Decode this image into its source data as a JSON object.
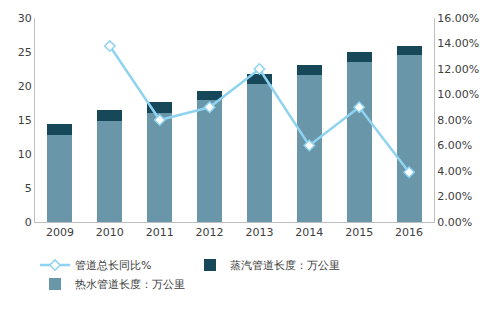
{
  "chart_data": {
    "type": "bar",
    "stacked": true,
    "grid": false,
    "legend": "bottom",
    "categories": [
      "2009",
      "2010",
      "2011",
      "2012",
      "2013",
      "2014",
      "2015",
      "2016"
    ],
    "series": [
      {
        "name": "热水管道长度：万公里",
        "type": "bar",
        "color": "#6a96aa",
        "values": [
          12.8,
          14.8,
          16.1,
          17.9,
          20.3,
          21.6,
          23.5,
          24.6
        ]
      },
      {
        "name": "蒸汽管道长度：万公里",
        "type": "bar",
        "color": "#17485a",
        "values": [
          1.6,
          1.6,
          1.6,
          1.4,
          1.4,
          1.5,
          1.5,
          1.3
        ]
      },
      {
        "name": "管道总长同比%",
        "type": "line",
        "axis": "y2",
        "color": "#8fd3f0",
        "marker": "diamond",
        "values": [
          null,
          13.8,
          8.0,
          9.0,
          12.0,
          6.0,
          9.0,
          3.9
        ]
      }
    ],
    "ylim": [
      0,
      30
    ],
    "yticks": [
      0,
      5,
      10,
      15,
      20,
      25,
      30
    ],
    "y2lim": [
      0,
      16
    ],
    "y2ticks": [
      {
        "value": 0,
        "label": "0.00%"
      },
      {
        "value": 2,
        "label": "2.00%"
      },
      {
        "value": 4,
        "label": "4.00%"
      },
      {
        "value": 6,
        "label": "6.00%"
      },
      {
        "value": 8,
        "label": "8.00%"
      },
      {
        "value": 10,
        "label": "10.00%"
      },
      {
        "value": 12,
        "label": "12.00%"
      },
      {
        "value": 14,
        "label": "14.00%"
      },
      {
        "value": 16,
        "label": "16.00%"
      }
    ]
  }
}
